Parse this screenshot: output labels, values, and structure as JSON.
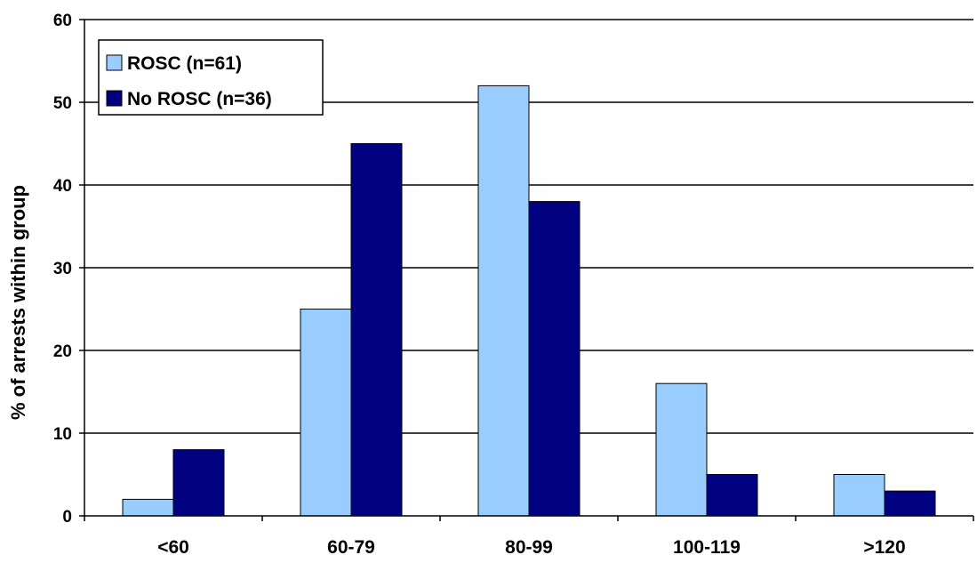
{
  "chart_data": {
    "type": "bar",
    "categories": [
      "<60",
      "60-79",
      "80-99",
      "100-119",
      ">120"
    ],
    "series": [
      {
        "name": "ROSC (n=61)",
        "values": [
          2,
          25,
          52,
          16,
          5
        ],
        "color": "#99CCFF"
      },
      {
        "name": "No ROSC (n=36)",
        "values": [
          8,
          45,
          38,
          5,
          3
        ],
        "color": "#000080"
      }
    ],
    "title": "",
    "xlabel": "",
    "ylabel": "% of arrests within group",
    "ylim": [
      0,
      60
    ],
    "yticks": [
      0,
      10,
      20,
      30,
      40,
      50,
      60
    ],
    "grid": true,
    "legend_position": "top-left"
  }
}
